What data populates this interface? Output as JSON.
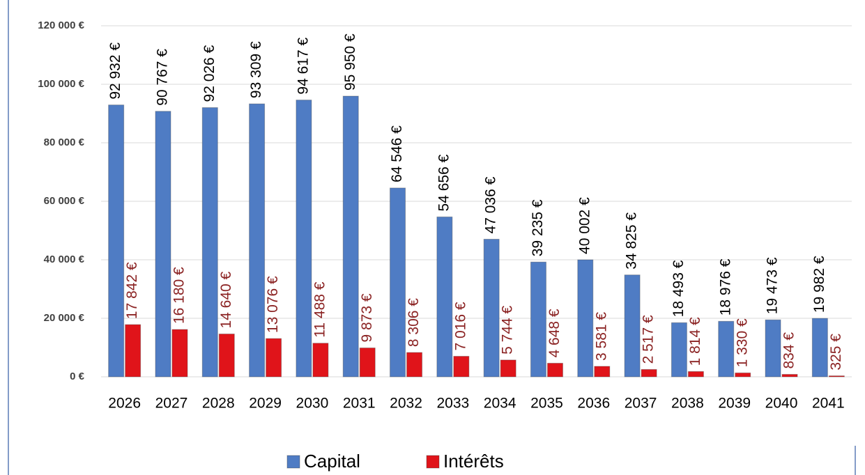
{
  "chart_data": {
    "type": "bar",
    "categories": [
      "2026",
      "2027",
      "2028",
      "2029",
      "2030",
      "2031",
      "2032",
      "2033",
      "2034",
      "2035",
      "2036",
      "2037",
      "2038",
      "2039",
      "2040",
      "2041"
    ],
    "series": [
      {
        "name": "Capital",
        "color": "#4f7cc4",
        "values": [
          92932,
          90767,
          92026,
          93309,
          94617,
          95950,
          64546,
          54656,
          47036,
          39235,
          40002,
          34825,
          18493,
          18976,
          19473,
          19982
        ],
        "value_labels": [
          "92 932 €",
          "90 767 €",
          "92 026 €",
          "93 309 €",
          "94 617 €",
          "95 950 €",
          "64 546 €",
          "54 656 €",
          "47 036 €",
          "39 235 €",
          "40 002 €",
          "34 825 €",
          "18 493 €",
          "18 976 €",
          "19 473 €",
          "19 982 €"
        ],
        "label_color": "#000000"
      },
      {
        "name": "Intérêts",
        "color": "#e0141a",
        "values": [
          17842,
          16180,
          14640,
          13076,
          11488,
          9873,
          8306,
          7016,
          5744,
          4648,
          3581,
          2517,
          1814,
          1330,
          834,
          325
        ],
        "value_labels": [
          "17 842 €",
          "16 180 €",
          "14 640 €",
          "13 076 €",
          "11 488 €",
          "9 873 €",
          "8 306 €",
          "7 016 €",
          "5 744 €",
          "4 648 €",
          "3 581 €",
          "2 517 €",
          "1 814 €",
          "1 330 €",
          "834 €",
          "325 €"
        ],
        "label_color": "#8b2323"
      }
    ],
    "ylim": [
      0,
      120000
    ],
    "yticks": [
      {
        "value": 0,
        "label": "0 €"
      },
      {
        "value": 20000,
        "label": "20 000 €"
      },
      {
        "value": 40000,
        "label": "40 000 €"
      },
      {
        "value": 60000,
        "label": "60 000 €"
      },
      {
        "value": 80000,
        "label": "80 000 €"
      },
      {
        "value": 100000,
        "label": "100 000 €"
      },
      {
        "value": 120000,
        "label": "120 000 €"
      }
    ],
    "grid": true,
    "legend": "bottom"
  }
}
